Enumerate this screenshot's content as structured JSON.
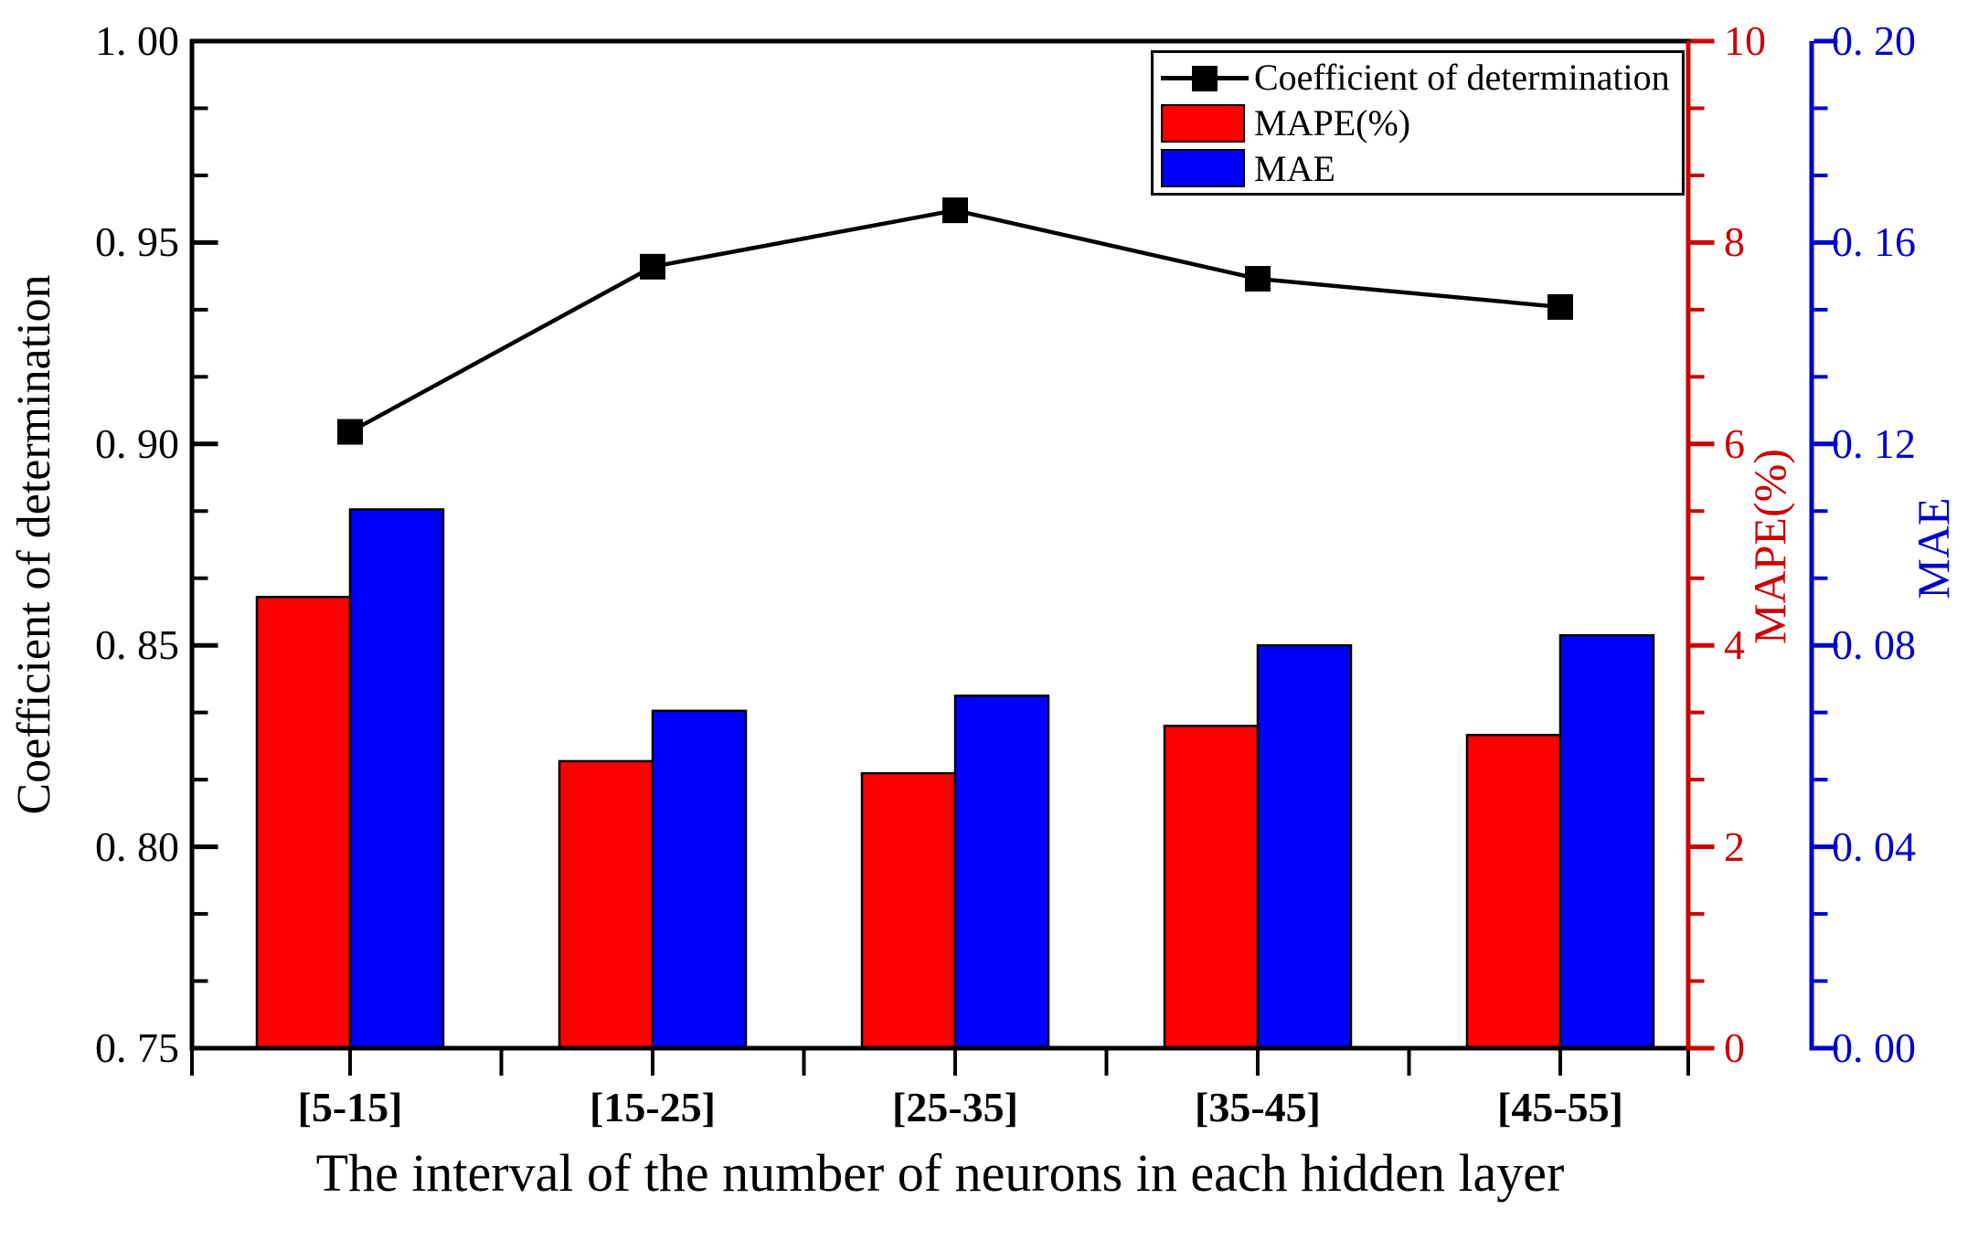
{
  "chart_data": {
    "type": "combo-bar-line",
    "categories": [
      "[5-15]",
      "[15-25]",
      "[25-35]",
      "[35-45]",
      "[45-55]"
    ],
    "series": [
      {
        "name": "Coefficient of determination",
        "type": "line",
        "axis": "left",
        "color": "#000000",
        "marker": "square",
        "values": [
          0.903,
          0.944,
          0.958,
          0.941,
          0.934
        ]
      },
      {
        "name": "MAPE(%)",
        "type": "bar",
        "axis": "mape",
        "color": "#fe0000",
        "values": [
          4.48,
          2.85,
          2.73,
          3.2,
          3.11
        ]
      },
      {
        "name": "MAE",
        "type": "bar",
        "axis": "mae",
        "color": "#0000fe",
        "values": [
          0.107,
          0.067,
          0.07,
          0.08,
          0.082
        ]
      }
    ],
    "axes": {
      "left": {
        "title": "Coefficient of determination",
        "color": "#000000",
        "lim": [
          0.75,
          1.0
        ],
        "ticks": [
          {
            "v": 1.0,
            "label": "1. 00"
          },
          {
            "v": 0.95,
            "label": "0. 95"
          },
          {
            "v": 0.9,
            "label": "0. 90"
          },
          {
            "v": 0.85,
            "label": "0. 85"
          },
          {
            "v": 0.8,
            "label": "0. 80"
          },
          {
            "v": 0.75,
            "label": "0. 75"
          }
        ],
        "minor_ticks_between_majors": 2
      },
      "mape": {
        "title": "MAPE(%)",
        "color": "#cc0000",
        "lim": [
          0,
          10
        ],
        "ticks": [
          {
            "v": 10,
            "label": "10"
          },
          {
            "v": 8,
            "label": "8"
          },
          {
            "v": 6,
            "label": "6"
          },
          {
            "v": 4,
            "label": "4"
          },
          {
            "v": 2,
            "label": "2"
          },
          {
            "v": 0,
            "label": "0"
          }
        ],
        "minor_ticks_between_majors": 2
      },
      "mae": {
        "title": "MAE",
        "color": "#0000cc",
        "lim": [
          0,
          0.2
        ],
        "ticks": [
          {
            "v": 0.2,
            "label": "0. 20"
          },
          {
            "v": 0.16,
            "label": "0. 16"
          },
          {
            "v": 0.12,
            "label": "0. 12"
          },
          {
            "v": 0.08,
            "label": "0. 08"
          },
          {
            "v": 0.04,
            "label": "0. 04"
          },
          {
            "v": 0.0,
            "label": "0. 00"
          }
        ],
        "minor_ticks_between_majors": 2
      },
      "bottom": {
        "title": "The interval of the number of neurons in each hidden layer"
      }
    },
    "grid": false,
    "legend": {
      "position": "top-right",
      "entries": [
        {
          "label": "Coefficient of determination",
          "symbol": "line-with-square-marker",
          "color": "#000000"
        },
        {
          "label": "MAPE(%)",
          "symbol": "filled-box",
          "color": "#fe0000"
        },
        {
          "label": "MAE",
          "symbol": "filled-box",
          "color": "#0000fe"
        }
      ]
    }
  }
}
